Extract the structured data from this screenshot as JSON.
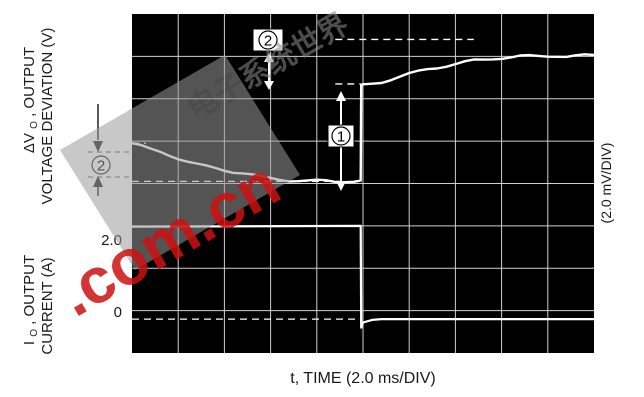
{
  "chart_data": {
    "type": "line",
    "title": "",
    "xlabel": "t, TIME (2.0 ms/DIV)",
    "ylabel_voltage": "ΔV O , OUTPUT VOLTAGE DEVIATION (V)",
    "ylabel_voltage_parts": {
      "delta_v": "ΔV",
      "subscript_o": "O",
      "rest": ", OUTPUT",
      "line2": "VOLTAGE DEVIATION (V)"
    },
    "ylabel_current": "I O , OUTPUT CURRENT (A)",
    "ylabel_current_parts": {
      "i": "I",
      "subscript_o": "O",
      "rest": ", OUTPUT",
      "line2": "CURRENT (A)"
    },
    "right_scale_label": "(2.0 mV/DIV)",
    "current_ticks": [
      "2.0",
      "0"
    ],
    "markers": [
      "2",
      "1",
      "2"
    ],
    "grid": true,
    "x_divisions": 10,
    "y_divisions": 8,
    "x_unit_per_div_ms": 2.0,
    "y_unit_per_div_mV": 2.0,
    "x_range_div": [
      0,
      10
    ],
    "y_range_div": [
      0,
      8
    ],
    "series": [
      {
        "name": "",
        "quantity": "output voltage deviation",
        "units": "divisions",
        "x": [
          0,
          0.2,
          0.4,
          0.6,
          0.8,
          1.0,
          1.2,
          1.4,
          1.6,
          1.8,
          2.0,
          2.2,
          2.4,
          2.6,
          2.8,
          3.0,
          3.2,
          3.4,
          3.6,
          3.8,
          4.0,
          4.2,
          4.4,
          4.6,
          4.8,
          4.95,
          4.96,
          5.0,
          5.2,
          5.4,
          5.6,
          5.8,
          6.0,
          6.2,
          6.4,
          6.6,
          6.8,
          7.0,
          7.2,
          7.4,
          7.6,
          7.8,
          8.0,
          8.2,
          8.4,
          8.6,
          8.8,
          9.0,
          9.2,
          9.4,
          9.6,
          9.8,
          10.0
        ],
        "y": [
          4.95,
          4.88,
          4.8,
          4.75,
          4.68,
          4.6,
          4.52,
          4.45,
          4.4,
          4.36,
          4.32,
          4.28,
          4.25,
          4.2,
          4.15,
          4.12,
          4.1,
          4.08,
          4.07,
          4.06,
          4.06,
          4.06,
          4.05,
          4.06,
          4.06,
          4.06,
          6.3,
          6.32,
          6.36,
          6.4,
          6.46,
          6.52,
          6.58,
          6.64,
          6.7,
          6.74,
          6.78,
          6.82,
          6.86,
          6.9,
          6.92,
          6.95,
          6.97,
          6.98,
          7.0,
          7.0,
          7.0,
          7.01,
          7.02,
          7.0,
          7.01,
          7.02,
          7.02
        ]
      },
      {
        "name": "",
        "quantity": "output current",
        "units": "divisions",
        "x": [
          0,
          4.95,
          4.96,
          5.0,
          5.2,
          5.4,
          5.6,
          6.0,
          7.0,
          8.0,
          9.0,
          10.0
        ],
        "y": [
          2.98,
          3.0,
          0.6,
          0.72,
          0.78,
          0.8,
          0.8,
          0.8,
          0.8,
          0.8,
          0.8,
          0.8
        ]
      }
    ],
    "reference_lines_div": {
      "voltage_upper_ref": 7.4,
      "voltage_start_ref": 6.35,
      "voltage_low_ref": 4.05,
      "voltage_left_upper_ref": 4.95,
      "current_zero_ref": 0.8
    }
  },
  "watermark": {
    "text1": "电子系统世界",
    "text2": ".com.cn"
  },
  "colors": {
    "plot_background": "#000000",
    "grid": "#d0d0d0",
    "trace": "#ffffff",
    "watermark_red": "#cc1111",
    "watermark_gray": "#9a9a9a"
  }
}
